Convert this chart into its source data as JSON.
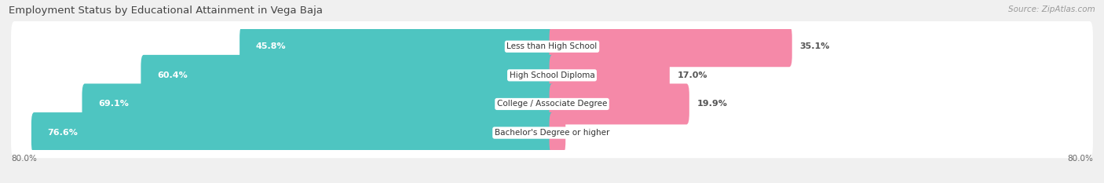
{
  "title": "Employment Status by Educational Attainment in Vega Baja",
  "source": "Source: ZipAtlas.com",
  "categories": [
    "Less than High School",
    "High School Diploma",
    "College / Associate Degree",
    "Bachelor's Degree or higher"
  ],
  "labor_force": [
    45.8,
    60.4,
    69.1,
    76.6
  ],
  "unemployed": [
    35.1,
    17.0,
    19.9,
    1.6
  ],
  "labor_force_color": "#4EC5C1",
  "unemployed_color": "#F589A8",
  "xlim_left": -80.0,
  "xlim_right": 80.0,
  "background_color": "#f0f0f0",
  "bar_bg_color": "#e8e8e8",
  "bar_row_bg": "#ffffff",
  "bar_height": 0.62,
  "title_fontsize": 9.5,
  "source_fontsize": 7.5,
  "label_fontsize": 8,
  "cat_fontsize": 7.5,
  "tick_fontsize": 7.5
}
